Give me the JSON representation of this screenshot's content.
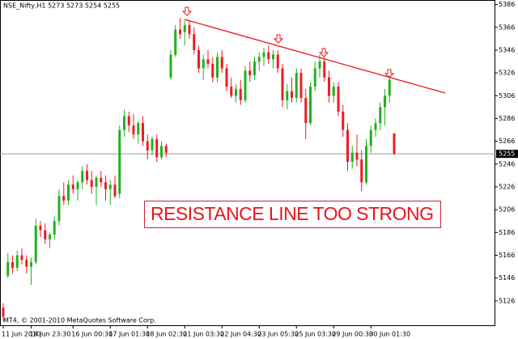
{
  "chart_data": {
    "type": "candlestick",
    "title": "NSE_Nifty,H1  5273 5273 5254 5255",
    "annotations": [
      "RESISTANCE LINE TOO STRONG",
      "MT4, © 2001-2010 MetaQuotes Software Corp."
    ],
    "categories": [
      "11 Jun 2010",
      null,
      null,
      null,
      null,
      null,
      "14 Jun 23:30",
      null,
      null,
      null,
      null,
      null,
      null,
      null,
      null,
      "16 Jun 00:30",
      null,
      null,
      null,
      null,
      null,
      null,
      null,
      "17 Jun 01:30",
      null,
      null,
      null,
      null,
      null,
      null,
      null,
      "18 Jun 02:30",
      null,
      null,
      null,
      null,
      null,
      null,
      null,
      "21 Jun 03:30",
      null,
      null,
      null,
      null,
      null,
      null,
      null,
      "22 Jun 04:30",
      null,
      null,
      null,
      null,
      null,
      null,
      null,
      "23 Jun 05:30",
      null,
      null,
      null,
      null,
      null,
      null,
      null,
      "25 Jun 03:30",
      null,
      null,
      null,
      null,
      null,
      null,
      null,
      "29 Jun 00:30",
      null,
      null,
      null,
      null,
      null,
      null,
      null,
      "30 Jun 01:30",
      null,
      null,
      null,
      null,
      null
    ],
    "open": [
      5120,
      5148,
      5160,
      5155,
      5166,
      5162,
      5156,
      5160,
      5192,
      5188,
      5180,
      5184,
      5196,
      5218,
      5214,
      5228,
      5224,
      5230,
      5240,
      5232,
      5226,
      5234,
      5230,
      5224,
      5228,
      5220,
      5276,
      5288,
      5280,
      5272,
      5282,
      5266,
      5258,
      5268,
      5252,
      5262,
      5322,
      5342,
      5364,
      5362,
      5368,
      5360,
      5346,
      5330,
      5338,
      5334,
      5322,
      5340,
      5330,
      5314,
      5306,
      5312,
      5302,
      5328,
      5324,
      5336,
      5340,
      5344,
      5338,
      5342,
      5330,
      5302,
      5310,
      5304,
      5326,
      5304,
      5282,
      5314,
      5330,
      5336,
      5322,
      5306,
      5314,
      5292,
      5276,
      5248,
      5256,
      5250,
      5230,
      5262,
      5276,
      5282,
      5296,
      5306,
      5273
    ],
    "high": [
      5124,
      5168,
      5166,
      5170,
      5172,
      5166,
      5164,
      5198,
      5196,
      5194,
      5186,
      5200,
      5224,
      5230,
      5232,
      5236,
      5232,
      5244,
      5246,
      5240,
      5236,
      5240,
      5236,
      5232,
      5236,
      5280,
      5294,
      5292,
      5290,
      5284,
      5288,
      5272,
      5270,
      5272,
      5266,
      5264,
      5346,
      5368,
      5374,
      5372,
      5372,
      5366,
      5350,
      5342,
      5346,
      5340,
      5344,
      5346,
      5334,
      5322,
      5316,
      5320,
      5332,
      5336,
      5340,
      5344,
      5348,
      5350,
      5346,
      5346,
      5334,
      5316,
      5322,
      5330,
      5330,
      5312,
      5318,
      5336,
      5342,
      5340,
      5328,
      5318,
      5318,
      5298,
      5282,
      5262,
      5272,
      5258,
      5268,
      5280,
      5286,
      5300,
      5312,
      5324,
      5273
    ],
    "low": [
      5108,
      5146,
      5150,
      5152,
      5158,
      5150,
      5140,
      5158,
      5182,
      5176,
      5172,
      5180,
      5192,
      5210,
      5210,
      5220,
      5214,
      5224,
      5228,
      5220,
      5210,
      5226,
      5214,
      5210,
      5216,
      5216,
      5270,
      5274,
      5268,
      5264,
      5262,
      5250,
      5254,
      5248,
      5250,
      5252,
      5320,
      5340,
      5356,
      5350,
      5356,
      5342,
      5326,
      5320,
      5330,
      5318,
      5318,
      5326,
      5310,
      5304,
      5300,
      5298,
      5300,
      5318,
      5320,
      5328,
      5332,
      5334,
      5330,
      5326,
      5296,
      5294,
      5300,
      5300,
      5300,
      5268,
      5280,
      5310,
      5322,
      5318,
      5300,
      5300,
      5288,
      5270,
      5240,
      5242,
      5244,
      5222,
      5228,
      5256,
      5270,
      5276,
      5280,
      5300,
      5254
    ],
    "close": [
      5112,
      5160,
      5155,
      5166,
      5162,
      5156,
      5160,
      5192,
      5188,
      5180,
      5184,
      5196,
      5218,
      5214,
      5228,
      5224,
      5230,
      5240,
      5232,
      5226,
      5234,
      5230,
      5224,
      5228,
      5218,
      5276,
      5288,
      5280,
      5272,
      5282,
      5266,
      5258,
      5268,
      5252,
      5262,
      5256,
      5342,
      5364,
      5360,
      5368,
      5360,
      5346,
      5330,
      5338,
      5334,
      5322,
      5340,
      5330,
      5314,
      5306,
      5312,
      5302,
      5328,
      5324,
      5336,
      5340,
      5344,
      5338,
      5342,
      5330,
      5302,
      5310,
      5304,
      5326,
      5304,
      5282,
      5314,
      5330,
      5336,
      5322,
      5306,
      5314,
      5292,
      5276,
      5248,
      5256,
      5250,
      5230,
      5262,
      5276,
      5282,
      5296,
      5306,
      5320,
      5255
    ],
    "up_color": "#1fb21f",
    "down_color": "#ee1c24",
    "last_price": 5255,
    "ylim": [
      5106,
      5390
    ],
    "yticks": [
      5386,
      5366,
      5346,
      5326,
      5306,
      5286,
      5266,
      5246,
      5226,
      5206,
      5186,
      5166,
      5146,
      5126
    ]
  }
}
